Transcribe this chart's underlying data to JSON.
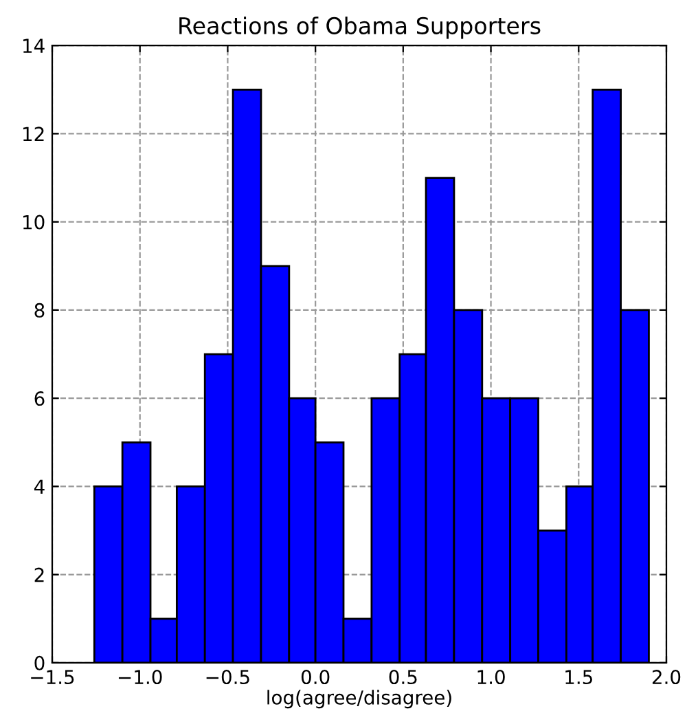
{
  "chart_data": {
    "type": "histogram",
    "title": "Reactions of Obama Supporters",
    "xlabel": "log(agree/disagree)",
    "bins": [
      -1.26,
      -1.1,
      -0.94,
      -0.79,
      -0.63,
      -0.47,
      -0.31,
      -0.15,
      0.0,
      0.16,
      0.32,
      0.48,
      0.63,
      0.79,
      0.95,
      1.11,
      1.27,
      1.43,
      1.58,
      1.74,
      1.9
    ],
    "values": [
      4,
      5,
      1,
      4,
      7,
      13,
      9,
      6,
      5,
      1,
      6,
      7,
      11,
      8,
      6,
      6,
      3,
      4,
      13,
      8
    ],
    "color": "#0000ff",
    "xlim": [
      -1.5,
      2.0
    ],
    "ylim": [
      0,
      14
    ],
    "xticks": [
      {
        "value": -1.5,
        "label": "−1.5"
      },
      {
        "value": -1.0,
        "label": "−1.0"
      },
      {
        "value": -0.5,
        "label": "−0.5"
      },
      {
        "value": 0.0,
        "label": "0.0"
      },
      {
        "value": 0.5,
        "label": "0.5"
      },
      {
        "value": 1.0,
        "label": "1.0"
      },
      {
        "value": 1.5,
        "label": "1.5"
      },
      {
        "value": 2.0,
        "label": "2.0"
      }
    ],
    "yticks": [
      0,
      2,
      4,
      6,
      8,
      10,
      12,
      14
    ],
    "grid": true
  }
}
